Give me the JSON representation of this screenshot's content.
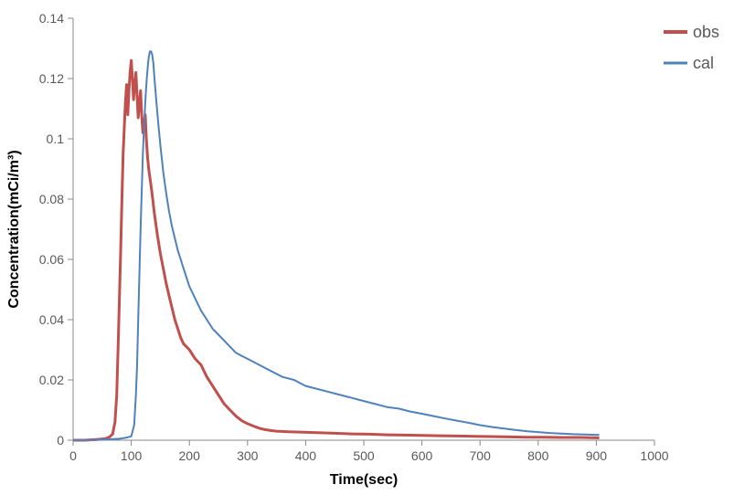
{
  "chart": {
    "type": "line",
    "background_color": "#ffffff",
    "plot_border_color": "#888888",
    "plot_border_width": 1,
    "xlabel": "Time(sec)",
    "ylabel": "Concentration(mCi/m³)",
    "label_fontsize": 16,
    "label_fontweight": "bold",
    "tick_fontsize": 14,
    "tick_color": "#595959",
    "xlim": [
      0,
      1000
    ],
    "ylim": [
      0,
      0.14
    ],
    "xtick_step": 100,
    "ytick_step": 0.02,
    "xticks": [
      0,
      100,
      200,
      300,
      400,
      500,
      600,
      700,
      800,
      900,
      1000
    ],
    "yticks": [
      0,
      0.02,
      0.04,
      0.06,
      0.08,
      0.1,
      0.12,
      0.14
    ],
    "legend": {
      "position": "right-top",
      "fontsize": 18,
      "items": [
        {
          "label": "obs",
          "color": "#c0504d",
          "width": 3
        },
        {
          "label": "cal",
          "color": "#4f81bd",
          "width": 2
        }
      ]
    },
    "series": [
      {
        "name": "obs",
        "color": "#c0504d",
        "line_width": 3,
        "noisy": true,
        "data": [
          [
            0,
            0
          ],
          [
            20,
            0
          ],
          [
            40,
            0.0002
          ],
          [
            55,
            0.0005
          ],
          [
            62,
            0.001
          ],
          [
            68,
            0.002
          ],
          [
            72,
            0.006
          ],
          [
            75,
            0.015
          ],
          [
            78,
            0.035
          ],
          [
            80,
            0.05
          ],
          [
            82,
            0.065
          ],
          [
            84,
            0.08
          ],
          [
            86,
            0.095
          ],
          [
            88,
            0.104
          ],
          [
            90,
            0.112
          ],
          [
            92,
            0.118
          ],
          [
            94,
            0.108
          ],
          [
            96,
            0.116
          ],
          [
            98,
            0.122
          ],
          [
            100,
            0.126
          ],
          [
            102,
            0.12
          ],
          [
            104,
            0.113
          ],
          [
            106,
            0.118
          ],
          [
            108,
            0.122
          ],
          [
            110,
            0.114
          ],
          [
            112,
            0.107
          ],
          [
            114,
            0.112
          ],
          [
            116,
            0.116
          ],
          [
            118,
            0.108
          ],
          [
            120,
            0.102
          ],
          [
            122,
            0.105
          ],
          [
            124,
            0.108
          ],
          [
            126,
            0.1
          ],
          [
            128,
            0.094
          ],
          [
            130,
            0.09
          ],
          [
            135,
            0.083
          ],
          [
            140,
            0.075
          ],
          [
            145,
            0.068
          ],
          [
            150,
            0.062
          ],
          [
            155,
            0.057
          ],
          [
            160,
            0.052
          ],
          [
            165,
            0.048
          ],
          [
            170,
            0.044
          ],
          [
            175,
            0.04
          ],
          [
            180,
            0.037
          ],
          [
            185,
            0.034
          ],
          [
            190,
            0.032
          ],
          [
            195,
            0.031
          ],
          [
            200,
            0.03
          ],
          [
            210,
            0.027
          ],
          [
            220,
            0.025
          ],
          [
            230,
            0.021
          ],
          [
            240,
            0.018
          ],
          [
            250,
            0.015
          ],
          [
            260,
            0.012
          ],
          [
            270,
            0.01
          ],
          [
            280,
            0.008
          ],
          [
            290,
            0.0065
          ],
          [
            300,
            0.0055
          ],
          [
            310,
            0.0047
          ],
          [
            320,
            0.004
          ],
          [
            330,
            0.0035
          ],
          [
            340,
            0.0032
          ],
          [
            350,
            0.003
          ],
          [
            370,
            0.0028
          ],
          [
            390,
            0.0027
          ],
          [
            420,
            0.0025
          ],
          [
            450,
            0.0023
          ],
          [
            480,
            0.0021
          ],
          [
            510,
            0.002
          ],
          [
            540,
            0.0018
          ],
          [
            570,
            0.0017
          ],
          [
            600,
            0.0016
          ],
          [
            630,
            0.0015
          ],
          [
            660,
            0.0014
          ],
          [
            690,
            0.0013
          ],
          [
            720,
            0.0012
          ],
          [
            750,
            0.0011
          ],
          [
            780,
            0.001
          ],
          [
            810,
            0.001
          ],
          [
            840,
            0.0009
          ],
          [
            870,
            0.0009
          ],
          [
            900,
            0.0008
          ],
          [
            905,
            0.0008
          ]
        ]
      },
      {
        "name": "cal",
        "color": "#4f81bd",
        "line_width": 2,
        "noisy": false,
        "data": [
          [
            0,
            0
          ],
          [
            30,
            0
          ],
          [
            60,
            0.0003
          ],
          [
            80,
            0.0005
          ],
          [
            90,
            0.0008
          ],
          [
            95,
            0.001
          ],
          [
            100,
            0.0013
          ],
          [
            105,
            0.005
          ],
          [
            108,
            0.015
          ],
          [
            110,
            0.025
          ],
          [
            112,
            0.04
          ],
          [
            114,
            0.055
          ],
          [
            116,
            0.07
          ],
          [
            118,
            0.082
          ],
          [
            120,
            0.095
          ],
          [
            122,
            0.104
          ],
          [
            124,
            0.112
          ],
          [
            126,
            0.118
          ],
          [
            128,
            0.123
          ],
          [
            130,
            0.127
          ],
          [
            132,
            0.129
          ],
          [
            134,
            0.129
          ],
          [
            136,
            0.128
          ],
          [
            138,
            0.125
          ],
          [
            140,
            0.12
          ],
          [
            143,
            0.113
          ],
          [
            146,
            0.106
          ],
          [
            150,
            0.098
          ],
          [
            155,
            0.089
          ],
          [
            160,
            0.082
          ],
          [
            165,
            0.076
          ],
          [
            170,
            0.071
          ],
          [
            175,
            0.067
          ],
          [
            180,
            0.063
          ],
          [
            185,
            0.06
          ],
          [
            190,
            0.057
          ],
          [
            195,
            0.054
          ],
          [
            200,
            0.051
          ],
          [
            210,
            0.047
          ],
          [
            220,
            0.043
          ],
          [
            230,
            0.04
          ],
          [
            240,
            0.037
          ],
          [
            250,
            0.035
          ],
          [
            260,
            0.033
          ],
          [
            270,
            0.031
          ],
          [
            280,
            0.029
          ],
          [
            290,
            0.028
          ],
          [
            300,
            0.027
          ],
          [
            320,
            0.025
          ],
          [
            340,
            0.023
          ],
          [
            360,
            0.021
          ],
          [
            380,
            0.02
          ],
          [
            400,
            0.018
          ],
          [
            420,
            0.017
          ],
          [
            440,
            0.016
          ],
          [
            460,
            0.015
          ],
          [
            480,
            0.014
          ],
          [
            500,
            0.013
          ],
          [
            520,
            0.012
          ],
          [
            540,
            0.011
          ],
          [
            560,
            0.0105
          ],
          [
            580,
            0.0095
          ],
          [
            600,
            0.0088
          ],
          [
            620,
            0.008
          ],
          [
            640,
            0.0072
          ],
          [
            660,
            0.0065
          ],
          [
            680,
            0.0058
          ],
          [
            700,
            0.005
          ],
          [
            720,
            0.0044
          ],
          [
            740,
            0.0039
          ],
          [
            760,
            0.0034
          ],
          [
            780,
            0.003
          ],
          [
            800,
            0.0027
          ],
          [
            820,
            0.0024
          ],
          [
            840,
            0.0022
          ],
          [
            860,
            0.002
          ],
          [
            880,
            0.0019
          ],
          [
            900,
            0.0018
          ],
          [
            905,
            0.0018
          ]
        ]
      }
    ]
  }
}
